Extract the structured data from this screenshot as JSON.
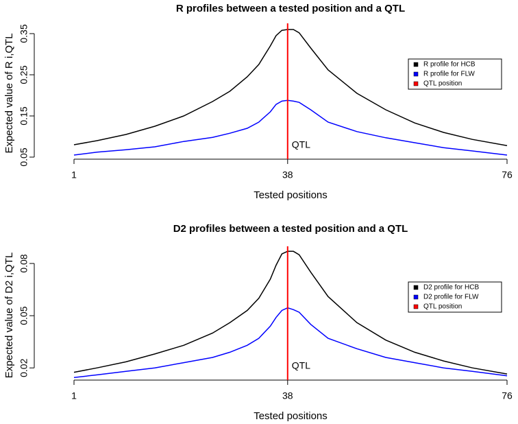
{
  "chart_data": [
    {
      "type": "line",
      "title": "R profiles between a tested position and a QTL",
      "xlabel": "Tested positions",
      "ylabel": "Expected value of R i,QTL",
      "x": [
        1,
        5,
        10,
        15,
        20,
        25,
        28,
        31,
        33,
        35,
        36,
        37,
        38,
        39,
        40,
        42,
        45,
        50,
        55,
        60,
        65,
        70,
        76
      ],
      "series": [
        {
          "name": "R profile for HCB",
          "color": "#000000",
          "values": [
            0.08,
            0.09,
            0.105,
            0.125,
            0.15,
            0.185,
            0.21,
            0.245,
            0.275,
            0.32,
            0.345,
            0.358,
            0.36,
            0.36,
            0.352,
            0.315,
            0.262,
            0.205,
            0.165,
            0.133,
            0.11,
            0.093,
            0.078
          ]
        },
        {
          "name": "R profile for FLW",
          "color": "#0000ff",
          "values": [
            0.055,
            0.062,
            0.068,
            0.075,
            0.088,
            0.098,
            0.108,
            0.12,
            0.135,
            0.16,
            0.178,
            0.186,
            0.188,
            0.186,
            0.183,
            0.165,
            0.135,
            0.112,
            0.097,
            0.085,
            0.073,
            0.065,
            0.055
          ]
        }
      ],
      "vlines": [
        {
          "name": "QTL position",
          "color": "#ff0000",
          "x": 38,
          "label": "QTL"
        }
      ],
      "xlim": [
        1,
        76
      ],
      "xticks": [
        1,
        38,
        76
      ],
      "ylim": [
        0.045,
        0.365
      ],
      "yticks": [
        0.05,
        0.15,
        0.25,
        0.35
      ],
      "legend": "upper right"
    },
    {
      "type": "line",
      "title": "D2 profiles between a tested position and a QTL",
      "xlabel": "Tested positions",
      "ylabel": "Expected value of D2 i,QTL",
      "x": [
        1,
        5,
        10,
        15,
        20,
        25,
        28,
        31,
        33,
        35,
        36,
        37,
        38,
        39,
        40,
        42,
        45,
        50,
        55,
        60,
        65,
        70,
        76
      ],
      "series": [
        {
          "name": "D2 profile for HCB",
          "color": "#000000",
          "values": [
            0.0175,
            0.02,
            0.0235,
            0.028,
            0.033,
            0.04,
            0.046,
            0.053,
            0.06,
            0.071,
            0.079,
            0.0855,
            0.087,
            0.087,
            0.085,
            0.075,
            0.061,
            0.046,
            0.036,
            0.029,
            0.024,
            0.02,
            0.0165
          ]
        },
        {
          "name": "D2 profile for FLW",
          "color": "#0000ff",
          "values": [
            0.0145,
            0.016,
            0.018,
            0.02,
            0.023,
            0.026,
            0.029,
            0.033,
            0.037,
            0.044,
            0.049,
            0.053,
            0.0545,
            0.0535,
            0.052,
            0.045,
            0.037,
            0.031,
            0.026,
            0.023,
            0.02,
            0.018,
            0.0155
          ]
        }
      ],
      "vlines": [
        {
          "name": "QTL position",
          "color": "#ff0000",
          "x": 38,
          "label": "QTL"
        }
      ],
      "xlim": [
        1,
        76
      ],
      "xticks": [
        1,
        38,
        76
      ],
      "ylim": [
        0.013,
        0.0875
      ],
      "yticks": [
        0.02,
        0.05,
        0.08
      ],
      "legend": "upper right"
    }
  ]
}
